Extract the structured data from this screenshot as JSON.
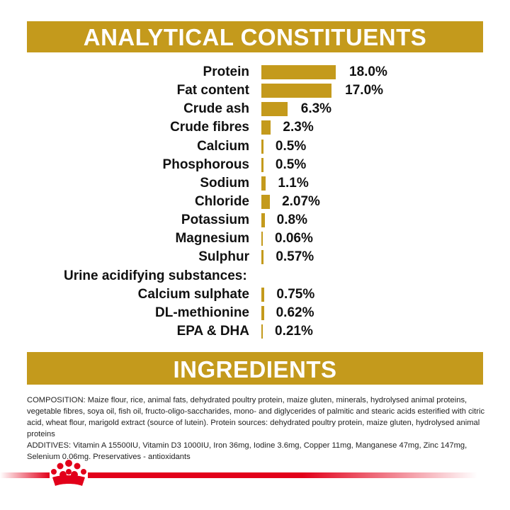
{
  "colors": {
    "accent": "#c49a1c",
    "brand_red": "#e2001a"
  },
  "analytical": {
    "title": "ANALYTICAL CONSTITUENTS",
    "subheading": "Urine acidifying substances:",
    "rows": [
      {
        "label": "Protein",
        "value": "18.0%",
        "amount": 18.0
      },
      {
        "label": "Fat content",
        "value": "17.0%",
        "amount": 17.0
      },
      {
        "label": "Crude ash",
        "value": "6.3%",
        "amount": 6.3
      },
      {
        "label": "Crude fibres",
        "value": "2.3%",
        "amount": 2.3
      },
      {
        "label": "Calcium",
        "value": "0.5%",
        "amount": 0.5
      },
      {
        "label": "Phosphorous",
        "value": "0.5%",
        "amount": 0.5
      },
      {
        "label": "Sodium",
        "value": "1.1%",
        "amount": 1.1
      },
      {
        "label": "Chloride",
        "value": "2.07%",
        "amount": 2.07
      },
      {
        "label": "Potassium",
        "value": "0.8%",
        "amount": 0.8
      },
      {
        "label": "Magnesium",
        "value": "0.06%",
        "amount": 0.06
      },
      {
        "label": "Sulphur",
        "value": "0.57%",
        "amount": 0.57
      },
      {
        "label": "Calcium sulphate",
        "value": "0.75%",
        "amount": 0.75
      },
      {
        "label": "DL-methionine",
        "value": "0.62%",
        "amount": 0.62
      },
      {
        "label": "EPA & DHA",
        "value": "0.21%",
        "amount": 0.21
      }
    ]
  },
  "ingredients": {
    "title": "INGREDIENTS",
    "composition": "COMPOSITION: Maize flour, rice, animal fats, dehydrated poultry protein, maize gluten, minerals, hydrolysed animal proteins, vegetable fibres, soya oil, fish oil, fructo-oligo-saccharides, mono- and diglycerides of palmitic and stearic acids esterified with citric acid, wheat flour, marigold extract (source of lutein). Protein sources: dehydrated poultry protein, maize gluten, hydrolysed animal proteins",
    "additives": "ADDITIVES: Vitamin A 15500IU, Vitamin D3 1000IU, Iron 36mg, Iodine 3.6mg, Copper 11mg, Manganese 47mg, Zinc 147mg, Selenium 0.06mg. Preservatives - antioxidants"
  },
  "footer": {
    "logo_icon": "crown-icon"
  }
}
